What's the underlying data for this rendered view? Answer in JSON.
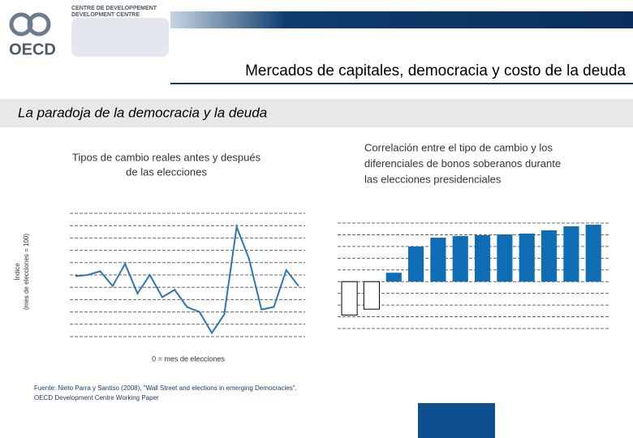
{
  "slide": {
    "logo": {
      "name": "OECD",
      "line1": "CENTRE DE DEVELOPPEMENT",
      "line2": "DEVELOPMENT CENTRE"
    },
    "title": "Mercados de capitales, democracia y costo de la deuda",
    "subtitle": "La paradoja de la democracia y la deuda",
    "source": [
      "Fuente: Nieto Parra y Santiso (2008),  \"Wall Street and elections in emerging Democracies\".",
      "OECD Development Centre Working Paper"
    ]
  },
  "chart_data": [
    {
      "type": "line",
      "title": [
        "Tipos de cambio reales antes y después",
        "de las elecciones"
      ],
      "y_label": [
        "Índice",
        "(mes de elecciones = 100)"
      ],
      "x_label": "0 = mes de elecciones",
      "categories": [
        null,
        null,
        null,
        null,
        null,
        null,
        null,
        null,
        null,
        null,
        null,
        null,
        null,
        null,
        null,
        null,
        null,
        null,
        null
      ],
      "values": [
        4.9,
        5.0,
        5.3,
        4.1,
        5.9,
        3.5,
        5.0,
        3.2,
        3.8,
        2.4,
        2.0,
        0.3,
        1.8,
        8.9,
        6.3,
        2.2,
        2.4,
        5.4,
        4.1
      ],
      "color": "#2e75b6",
      "ylim": [
        0,
        10
      ],
      "yticks": [
        0,
        1,
        2,
        3,
        4,
        5,
        6,
        7,
        8,
        9,
        10
      ],
      "tick_labels": false,
      "grid": true
    },
    {
      "type": "bar",
      "title": [
        "Correlación entre el tipo de cambio y los",
        "diferenciales de bonos soberanos durante",
        "las elecciones presidenciales"
      ],
      "categories": [
        null,
        null,
        null,
        null,
        null,
        null,
        null,
        null,
        null,
        null,
        null,
        null
      ],
      "values": [
        -2.85,
        -2.35,
        0.76,
        2.99,
        3.75,
        3.89,
        3.96,
        4.03,
        4.1,
        4.38,
        4.72,
        4.86
      ],
      "colors": [
        "#ffffff",
        "#ffffff",
        "#0f6db5",
        "#0f6db5",
        "#0f6db5",
        "#0f6db5",
        "#0f6db5",
        "#0f6db5",
        "#0f6db5",
        "#0f6db5",
        "#0f6db5",
        "#0f6db5"
      ],
      "ylim": [
        -4,
        5
      ],
      "yticks": [
        -4,
        -3,
        -2,
        -1,
        0,
        1,
        2,
        3,
        4,
        5
      ],
      "tick_labels": false,
      "grid": true
    }
  ]
}
